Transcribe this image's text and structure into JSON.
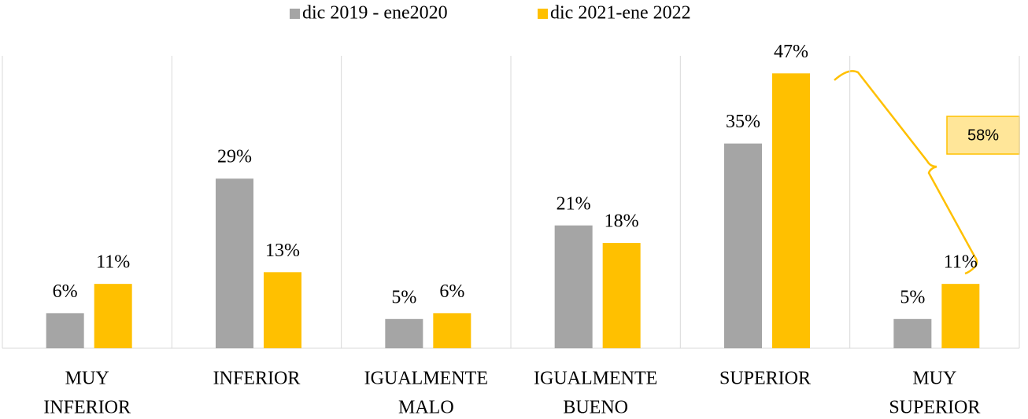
{
  "chart_data": {
    "type": "bar",
    "categories": [
      [
        "MUY",
        "INFERIOR"
      ],
      [
        "INFERIOR"
      ],
      [
        "IGUALMENTE",
        "MALO"
      ],
      [
        "IGUALMENTE",
        "BUENO"
      ],
      [
        "SUPERIOR"
      ],
      [
        "MUY",
        "SUPERIOR"
      ]
    ],
    "series": [
      {
        "name": "dic 2019 - ene2020",
        "color": "#a5a5a5",
        "values": [
          6,
          29,
          5,
          21,
          35,
          5
        ],
        "value_labels": [
          "6%",
          "29%",
          "5%",
          "21%",
          "35%",
          "5%"
        ]
      },
      {
        "name": "dic 2021-ene 2022",
        "color": "#ffc000",
        "values": [
          11,
          13,
          6,
          18,
          47,
          11
        ],
        "value_labels": [
          "11%",
          "13%",
          "6%",
          "18%",
          "47%",
          "11%"
        ]
      }
    ],
    "ylim": [
      0,
      50
    ],
    "legend": "top",
    "annotations": [
      "58%"
    ]
  }
}
